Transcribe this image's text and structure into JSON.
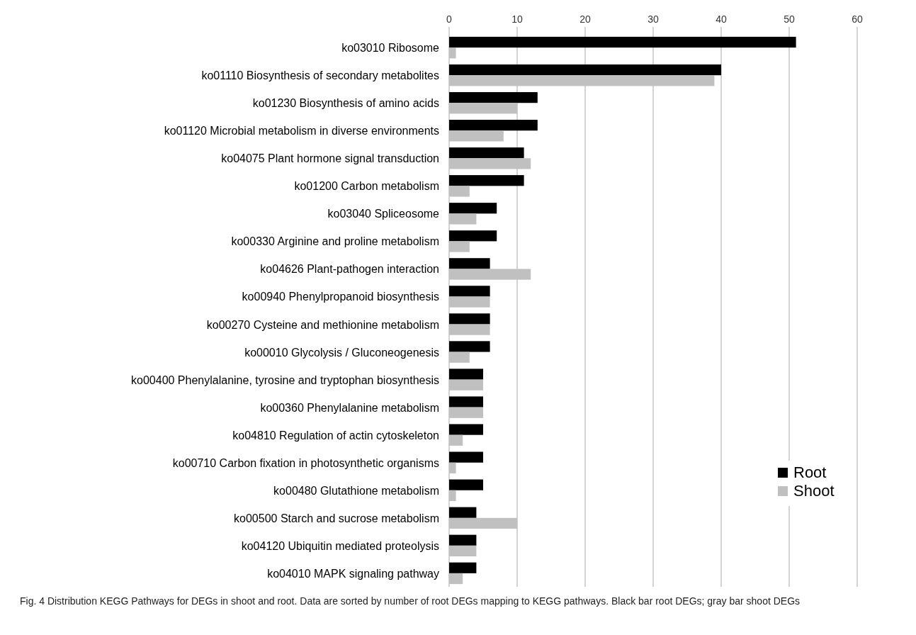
{
  "chart_data": {
    "type": "bar",
    "orientation": "horizontal",
    "categories": [
      "ko03010 Ribosome",
      "ko01110 Biosynthesis of secondary metabolites",
      "ko01230 Biosynthesis of amino acids",
      "ko01120 Microbial metabolism in diverse environments",
      "ko04075 Plant hormone signal transduction",
      "ko01200 Carbon metabolism",
      "ko03040 Spliceosome",
      "ko00330 Arginine and proline metabolism",
      "ko04626 Plant-pathogen interaction",
      "ko00940 Phenylpropanoid biosynthesis",
      "ko00270 Cysteine and methionine metabolism",
      "ko00010 Glycolysis / Gluconeogenesis",
      "ko00400 Phenylalanine, tyrosine and tryptophan biosynthesis",
      "ko00360 Phenylalanine metabolism",
      "ko04810 Regulation of actin cytoskeleton",
      "ko00710 Carbon fixation in photosynthetic organisms",
      "ko00480 Glutathione metabolism",
      "ko00500 Starch and sucrose metabolism",
      "ko04120 Ubiquitin mediated proteolysis",
      "ko04010 MAPK signaling pathway"
    ],
    "series": [
      {
        "name": "Root",
        "color": "#000000",
        "values": [
          51,
          40,
          13,
          13,
          11,
          11,
          7,
          7,
          6,
          6,
          6,
          6,
          5,
          5,
          5,
          5,
          5,
          4,
          4,
          4
        ]
      },
      {
        "name": "Shoot",
        "color": "#c0c0c0",
        "values": [
          1,
          39,
          10,
          8,
          12,
          3,
          4,
          3,
          12,
          6,
          6,
          3,
          5,
          5,
          2,
          1,
          1,
          10,
          4,
          2
        ]
      }
    ],
    "xlim": [
      0,
      60
    ],
    "xticks": [
      0,
      10,
      20,
      30,
      40,
      50,
      60
    ],
    "grid": "x",
    "legend": "bottom right",
    "annotations": [
      "Fig. 4 Distribution KEGG Pathways for DEGs in shoot and root. Data are sorted by number of root DEGs mapping to KEGG pathways. Black bar root DEGs; gray bar shoot DEGs"
    ]
  }
}
